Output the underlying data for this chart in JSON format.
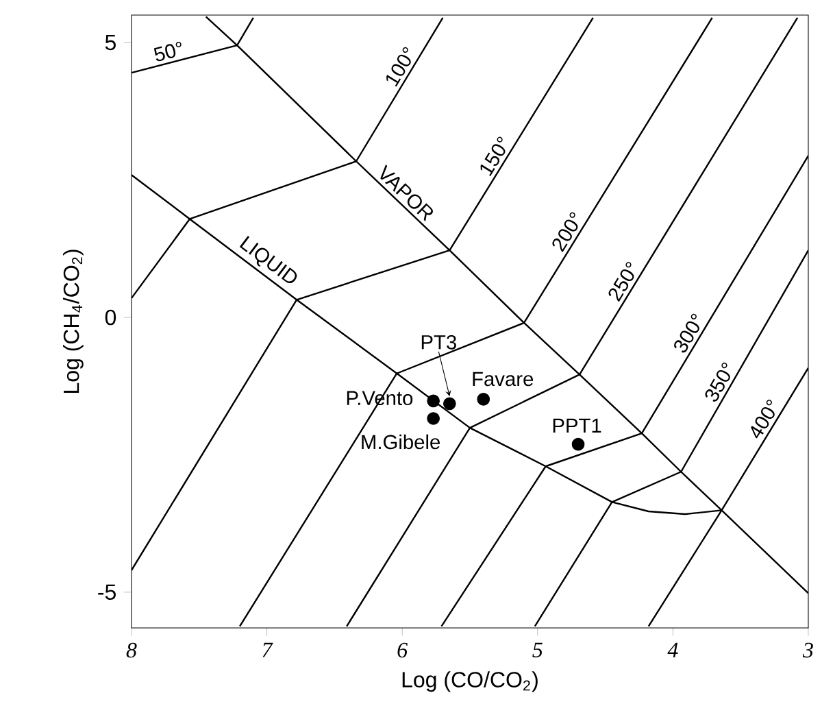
{
  "chart_data": {
    "type": "line",
    "xlabel": "Log (CO/CO$_{2}$)",
    "ylabel": "Log (CH$_{4}$/CO$_{2}$)",
    "xlim": [
      8,
      3
    ],
    "ylim": [
      -5.65,
      5.5
    ],
    "xticks": [
      8,
      7,
      6,
      5,
      4,
      3
    ],
    "yticks": [
      -5,
      0,
      5
    ],
    "grid": false,
    "legend": false,
    "series": [
      {
        "name": "VAPOR",
        "color": "#000000",
        "x": [
          7.45,
          7.22,
          6.34,
          5.65,
          5.1,
          4.69,
          4.23,
          3.94,
          3.64,
          3.0
        ],
        "values": [
          5.47,
          4.95,
          2.84,
          1.22,
          -0.1,
          -1.04,
          -2.11,
          -2.81,
          -3.51,
          -5.02
        ]
      },
      {
        "name": "LIQUID",
        "color": "#000000",
        "x": [
          8.0,
          7.57,
          6.78,
          6.04,
          5.5,
          4.94,
          4.45,
          4.18,
          3.91,
          3.64
        ],
        "values": [
          2.59,
          1.79,
          0.32,
          -1.02,
          -2.01,
          -2.71,
          -3.36,
          -3.53,
          -3.58,
          -3.51
        ]
      },
      {
        "name": "50°",
        "color": "#000000",
        "x": [
          8.0,
          7.22,
          7.1
        ],
        "values": [
          4.45,
          4.95,
          5.45
        ]
      },
      {
        "name": "100°",
        "color": "#000000",
        "x": [
          8.0,
          7.57,
          6.34,
          5.7
        ],
        "values": [
          0.35,
          1.79,
          2.84,
          5.45
        ]
      },
      {
        "name": "150°",
        "color": "#000000",
        "x": [
          8.0,
          6.78,
          5.65,
          4.59
        ],
        "values": [
          -4.6,
          0.32,
          1.22,
          5.45
        ]
      },
      {
        "name": "200°",
        "color": "#000000",
        "x": [
          7.2,
          6.04,
          5.1,
          3.71
        ],
        "values": [
          -5.62,
          -1.02,
          -0.1,
          5.45
        ]
      },
      {
        "name": "250°",
        "color": "#000000",
        "x": [
          6.41,
          5.5,
          4.69,
          3.08
        ],
        "values": [
          -5.62,
          -2.01,
          -1.04,
          5.45
        ]
      },
      {
        "name": "300°",
        "color": "#000000",
        "x": [
          5.71,
          4.94,
          4.23,
          3.0
        ],
        "values": [
          -5.62,
          -2.71,
          -2.11,
          2.94
        ]
      },
      {
        "name": "350°",
        "color": "#000000",
        "x": [
          5.02,
          4.45,
          3.94,
          3.0
        ],
        "values": [
          -5.62,
          -3.36,
          -2.81,
          1.22
        ]
      },
      {
        "name": "400°",
        "color": "#000000",
        "x": [
          4.18,
          3.64,
          3.0
        ],
        "values": [
          -5.62,
          -3.51,
          -0.92
        ]
      },
      {
        "type": "scatter",
        "color": "#000000",
        "x": [
          5.77,
          5.65,
          5.4,
          4.7,
          5.77
        ],
        "values": [
          -1.52,
          -1.57,
          -1.49,
          -2.31,
          -1.84
        ]
      }
    ],
    "annotations": [
      {
        "text": "P.Vento",
        "x": 5.77,
        "y": -1.52
      },
      {
        "text": "PT3",
        "x": 5.65,
        "y": -1.57
      },
      {
        "text": "Favare",
        "x": 5.4,
        "y": -1.49
      },
      {
        "text": "PPT1",
        "x": 4.7,
        "y": -2.31
      },
      {
        "text": "M.Gibele",
        "x": 5.77,
        "y": -1.84
      }
    ]
  }
}
